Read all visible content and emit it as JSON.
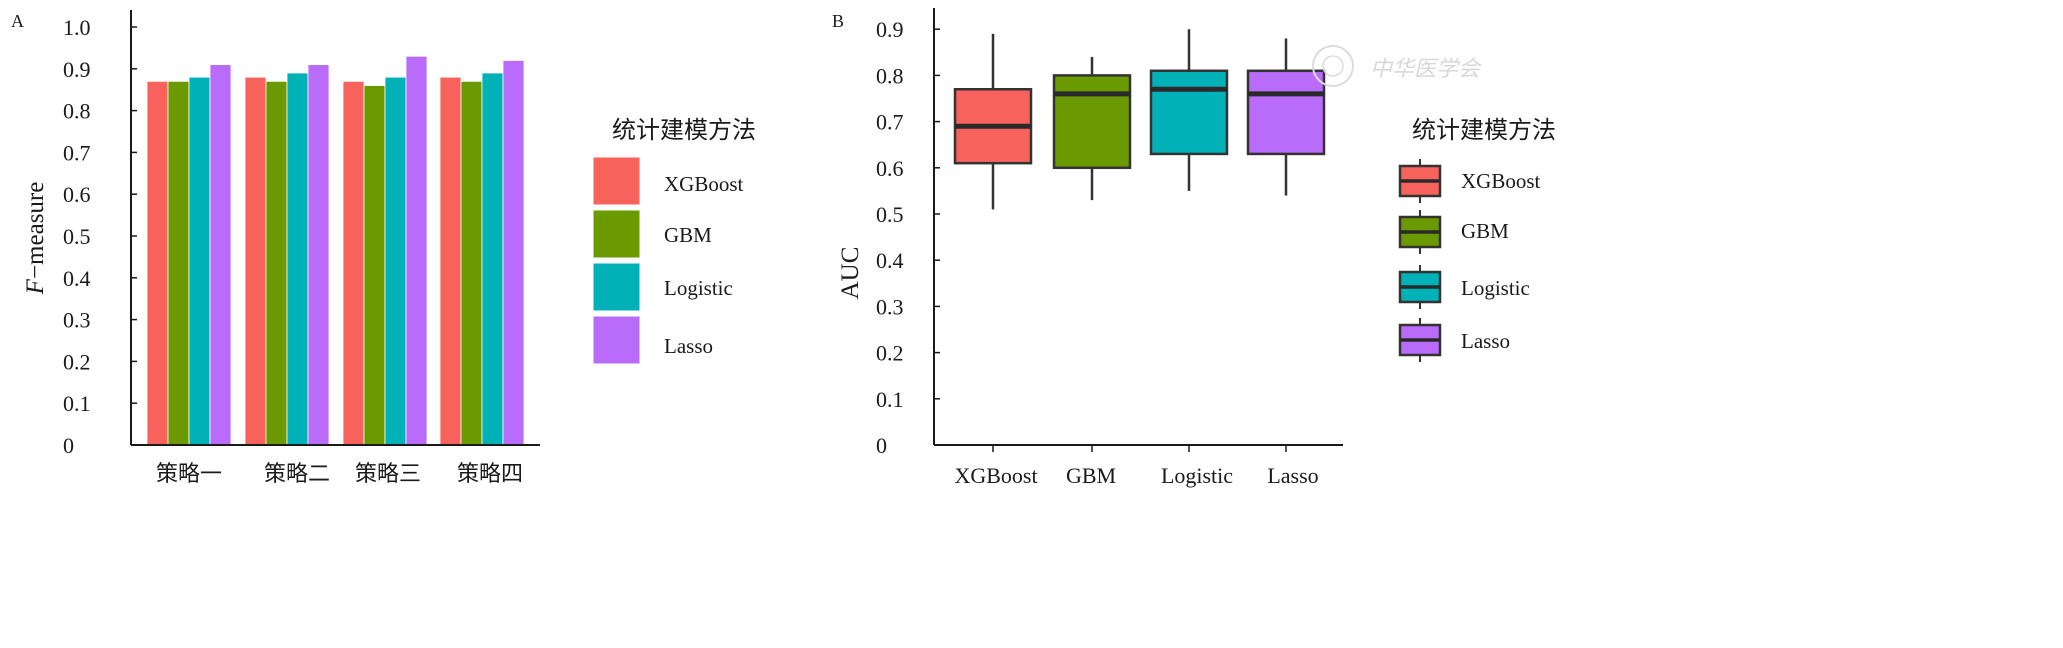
{
  "chart_data": [
    {
      "type": "bar",
      "panel_label": "A",
      "ylabel_italic": "F",
      "ylabel_rest": "−measure",
      "ylim": [
        0,
        1.0
      ],
      "yticks": [
        "0",
        "0.1",
        "0.2",
        "0.3",
        "0.4",
        "0.5",
        "0.6",
        "0.7",
        "0.8",
        "0.9",
        "1.0"
      ],
      "categories": [
        "策略一",
        "策略二",
        "策略三",
        "策略四"
      ],
      "series": [
        {
          "name": "XGBoost",
          "color": "#F8625C",
          "values": [
            0.87,
            0.88,
            0.87,
            0.88
          ]
        },
        {
          "name": "GBM",
          "color": "#6A9A00",
          "values": [
            0.87,
            0.87,
            0.86,
            0.87
          ]
        },
        {
          "name": "Logistic",
          "color": "#00B2B8",
          "values": [
            0.88,
            0.89,
            0.88,
            0.89
          ]
        },
        {
          "name": "Lasso",
          "color": "#B96BF9",
          "values": [
            0.91,
            0.91,
            0.93,
            0.92
          ]
        }
      ],
      "legend": {
        "title": "统计建模方法",
        "position": "right"
      }
    },
    {
      "type": "box",
      "panel_label": "B",
      "ylabel": "AUC",
      "ylim": [
        0,
        0.95
      ],
      "yticks": [
        "0",
        "0.1",
        "0.2",
        "0.3",
        "0.4",
        "0.5",
        "0.6",
        "0.7",
        "0.8",
        "0.9"
      ],
      "categories": [
        "XGBoost",
        "GBM",
        "Logistic",
        "Lasso"
      ],
      "boxes": [
        {
          "name": "XGBoost",
          "color": "#F8625C",
          "min": 0.51,
          "q1": 0.61,
          "median": 0.69,
          "q3": 0.77,
          "max": 0.89
        },
        {
          "name": "GBM",
          "color": "#6A9A00",
          "min": 0.53,
          "q1": 0.6,
          "median": 0.76,
          "q3": 0.8,
          "max": 0.84
        },
        {
          "name": "Logistic",
          "color": "#00B2B8",
          "min": 0.55,
          "q1": 0.63,
          "median": 0.77,
          "q3": 0.81,
          "max": 0.9
        },
        {
          "name": "Lasso",
          "color": "#B96BF9",
          "min": 0.54,
          "q1": 0.63,
          "median": 0.76,
          "q3": 0.81,
          "max": 0.88
        }
      ],
      "legend": {
        "title": "统计建模方法",
        "position": "right"
      }
    }
  ],
  "watermark": "中华医学会"
}
